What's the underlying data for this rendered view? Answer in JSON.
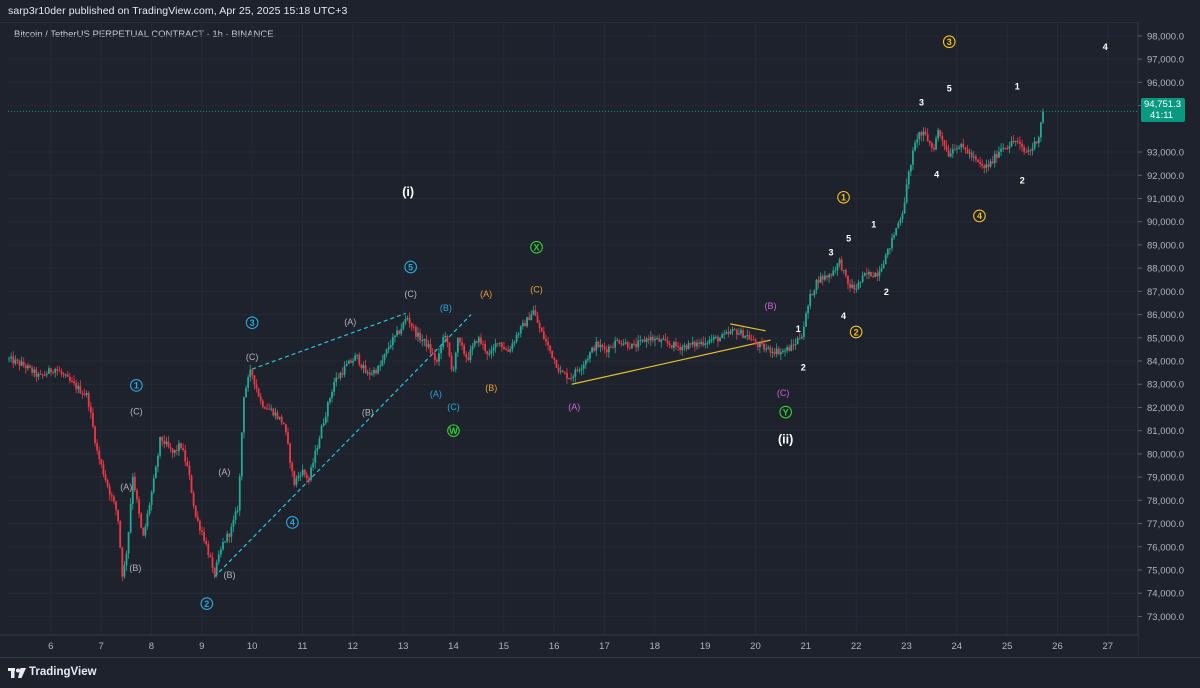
{
  "header": {
    "publisher_line": "sarp3r10der published on TradingView.com, Apr 25, 2025 15:18 UTC+3",
    "symbol_line": "Bitcoin / TetherUS PERPETUAL CONTRACT · 1h · BINANCE"
  },
  "footer": {
    "brand": "TradingView",
    "logo_icon": "tradingview-logo-icon"
  },
  "colors": {
    "background": "#1e222d",
    "up_candle": "#22ab94",
    "down_candle": "#f23645",
    "wave_cyan": "#2ba8d6",
    "wave_grey": "#b2b5be",
    "wave_green": "#33cc33",
    "wave_orange": "#f0a030",
    "wave_purple": "#cc66dd",
    "wave_yellow": "#f0c020",
    "trendline_cyan": "#26c6da",
    "trendline_yellow": "#e6c229",
    "current_price_line": "#089981"
  },
  "price_tag": {
    "price": "94,751.3",
    "countdown": "41:11"
  },
  "chart_data": {
    "type": "candlestick",
    "title": "Bitcoin / TetherUS PERPETUAL CONTRACT · 1h · BINANCE",
    "ylim": [
      72200,
      98600
    ],
    "y_ticks": [
      "98,000.0",
      "97,000.0",
      "96,000.0",
      "95,000.0",
      "93,000.0",
      "92,000.0",
      "91,000.0",
      "90,000.0",
      "89,000.0",
      "88,000.0",
      "87,000.0",
      "86,000.0",
      "85,000.0",
      "84,000.0",
      "83,000.0",
      "82,000.0",
      "81,000.0",
      "80,000.0",
      "79,000.0",
      "78,000.0",
      "77,000.0",
      "76,000.0",
      "75,000.0",
      "74,000.0",
      "73,000.0"
    ],
    "x_ticks": [
      "6",
      "7",
      "8",
      "9",
      "10",
      "11",
      "12",
      "13",
      "14",
      "15",
      "16",
      "17",
      "18",
      "19",
      "20",
      "21",
      "22",
      "23",
      "24",
      "25",
      "26",
      "27"
    ],
    "x_domain": [
      5.15,
      27.6
    ],
    "current_price": 94751.3,
    "series": [
      {
        "name": "price_path",
        "points": [
          [
            5.15,
            84100
          ],
          [
            5.5,
            83800
          ],
          [
            5.8,
            83300
          ],
          [
            6.1,
            83700
          ],
          [
            6.4,
            83100
          ],
          [
            6.75,
            82500
          ],
          [
            6.95,
            80000
          ],
          [
            7.2,
            78300
          ],
          [
            7.35,
            77400
          ],
          [
            7.45,
            74600
          ],
          [
            7.55,
            76200
          ],
          [
            7.65,
            79100
          ],
          [
            7.85,
            76300
          ],
          [
            8.1,
            79200
          ],
          [
            8.2,
            80700
          ],
          [
            8.45,
            80000
          ],
          [
            8.6,
            80400
          ],
          [
            8.75,
            79300
          ],
          [
            8.9,
            77300
          ],
          [
            9.05,
            76500
          ],
          [
            9.2,
            75400
          ],
          [
            9.25,
            74700
          ],
          [
            9.45,
            76200
          ],
          [
            9.6,
            76700
          ],
          [
            9.75,
            77800
          ],
          [
            9.85,
            82500
          ],
          [
            10.0,
            83600
          ],
          [
            10.2,
            82200
          ],
          [
            10.45,
            81800
          ],
          [
            10.65,
            81300
          ],
          [
            10.75,
            80100
          ],
          [
            10.85,
            78700
          ],
          [
            11.0,
            79300
          ],
          [
            11.15,
            78900
          ],
          [
            11.4,
            81100
          ],
          [
            11.65,
            83100
          ],
          [
            11.9,
            83800
          ],
          [
            12.1,
            84200
          ],
          [
            12.3,
            83400
          ],
          [
            12.55,
            83700
          ],
          [
            12.75,
            84700
          ],
          [
            12.95,
            85300
          ],
          [
            13.1,
            85900
          ],
          [
            13.3,
            85100
          ],
          [
            13.5,
            84700
          ],
          [
            13.7,
            83900
          ],
          [
            13.85,
            85300
          ],
          [
            14.0,
            83400
          ],
          [
            14.1,
            84900
          ],
          [
            14.3,
            84100
          ],
          [
            14.5,
            85000
          ],
          [
            14.75,
            84200
          ],
          [
            14.9,
            84900
          ],
          [
            15.1,
            84400
          ],
          [
            15.3,
            85200
          ],
          [
            15.5,
            85800
          ],
          [
            15.6,
            86200
          ],
          [
            15.75,
            85300
          ],
          [
            15.95,
            84400
          ],
          [
            16.15,
            83500
          ],
          [
            16.35,
            83300
          ],
          [
            16.6,
            83900
          ],
          [
            16.85,
            84700
          ],
          [
            17.05,
            84500
          ],
          [
            17.3,
            84900
          ],
          [
            17.6,
            84600
          ],
          [
            17.9,
            85000
          ],
          [
            18.2,
            84800
          ],
          [
            18.5,
            84600
          ],
          [
            18.8,
            84700
          ],
          [
            19.1,
            84900
          ],
          [
            19.35,
            85000
          ],
          [
            19.6,
            85300
          ],
          [
            19.85,
            85100
          ],
          [
            20.05,
            84700
          ],
          [
            20.25,
            84500
          ],
          [
            20.55,
            84400
          ],
          [
            20.75,
            84600
          ],
          [
            20.95,
            85200
          ],
          [
            21.1,
            86700
          ],
          [
            21.25,
            87500
          ],
          [
            21.5,
            87700
          ],
          [
            21.7,
            88300
          ],
          [
            21.85,
            87300
          ],
          [
            22.0,
            87100
          ],
          [
            22.2,
            87700
          ],
          [
            22.45,
            87800
          ],
          [
            22.65,
            88700
          ],
          [
            22.8,
            89600
          ],
          [
            22.95,
            90500
          ],
          [
            23.1,
            92500
          ],
          [
            23.25,
            93800
          ],
          [
            23.4,
            93700
          ],
          [
            23.55,
            93100
          ],
          [
            23.65,
            93900
          ],
          [
            23.75,
            93500
          ],
          [
            23.85,
            92900
          ],
          [
            24.0,
            93300
          ],
          [
            24.2,
            93100
          ],
          [
            24.4,
            92600
          ],
          [
            24.55,
            92300
          ],
          [
            24.7,
            92500
          ],
          [
            24.9,
            93200
          ],
          [
            25.05,
            93300
          ],
          [
            25.2,
            93500
          ],
          [
            25.35,
            93000
          ],
          [
            25.5,
            93100
          ],
          [
            25.65,
            93700
          ],
          [
            25.72,
            94751
          ]
        ]
      }
    ],
    "trendlines": [
      {
        "name": "channel-upper",
        "color": "cyan",
        "dashed": true,
        "from": [
          10.0,
          83650
        ],
        "to": [
          13.05,
          86050
        ]
      },
      {
        "name": "channel-lower",
        "color": "cyan",
        "dashed": true,
        "from": [
          9.25,
          74700
        ],
        "to": [
          14.35,
          86000
        ]
      },
      {
        "name": "triangle-lower",
        "color": "yellow",
        "dashed": false,
        "from": [
          16.35,
          83000
        ],
        "to": [
          20.3,
          84900
        ]
      },
      {
        "name": "triangle-upper",
        "color": "yellow",
        "dashed": false,
        "from": [
          19.5,
          85600
        ],
        "to": [
          20.2,
          85300
        ]
      }
    ],
    "annotations": [
      {
        "text": "1",
        "circled": true,
        "color": "cyan",
        "x": 7.7,
        "y": 82950
      },
      {
        "text": "(C)",
        "circled": false,
        "color": "grey",
        "x": 7.7,
        "y": 81850
      },
      {
        "text": "(A)",
        "circled": false,
        "color": "grey",
        "x": 7.5,
        "y": 78600
      },
      {
        "text": "(B)",
        "circled": false,
        "color": "grey",
        "x": 7.68,
        "y": 75100
      },
      {
        "text": "(A)",
        "circled": false,
        "color": "grey",
        "x": 9.45,
        "y": 79250
      },
      {
        "text": "(B)",
        "circled": false,
        "color": "grey",
        "x": 9.55,
        "y": 74800
      },
      {
        "text": "2",
        "circled": true,
        "color": "cyan",
        "x": 9.1,
        "y": 73550
      },
      {
        "text": "3",
        "circled": true,
        "color": "cyan",
        "x": 10.0,
        "y": 85650
      },
      {
        "text": "(C)",
        "circled": false,
        "color": "grey",
        "x": 10.0,
        "y": 84200
      },
      {
        "text": "4",
        "circled": true,
        "color": "cyan",
        "x": 10.8,
        "y": 77050
      },
      {
        "text": "(A)",
        "circled": false,
        "color": "grey",
        "x": 11.95,
        "y": 85700
      },
      {
        "text": "(B)",
        "circled": false,
        "color": "grey",
        "x": 12.3,
        "y": 81800
      },
      {
        "text": "5",
        "circled": true,
        "color": "cyan",
        "x": 13.15,
        "y": 88050
      },
      {
        "text": "(C)",
        "circled": false,
        "color": "grey",
        "x": 13.15,
        "y": 86900
      },
      {
        "text": "(i)",
        "circled": false,
        "color": "white",
        "x": 13.1,
        "y": 91250
      },
      {
        "text": "(B)",
        "circled": false,
        "color": "cyan",
        "x": 13.85,
        "y": 86300
      },
      {
        "text": "(A)",
        "circled": false,
        "color": "cyan",
        "x": 13.65,
        "y": 82600
      },
      {
        "text": "(C)",
        "circled": false,
        "color": "cyan",
        "x": 14.0,
        "y": 82050
      },
      {
        "text": "W",
        "circled": true,
        "color": "green",
        "x": 14.0,
        "y": 81000
      },
      {
        "text": "(A)",
        "circled": false,
        "color": "orange",
        "x": 14.65,
        "y": 86900
      },
      {
        "text": "(B)",
        "circled": false,
        "color": "orange",
        "x": 14.75,
        "y": 82850
      },
      {
        "text": "X",
        "circled": true,
        "color": "green",
        "x": 15.65,
        "y": 88900
      },
      {
        "text": "(C)",
        "circled": false,
        "color": "orange",
        "x": 15.65,
        "y": 87100
      },
      {
        "text": "(A)",
        "circled": false,
        "color": "purple",
        "x": 16.4,
        "y": 82050
      },
      {
        "text": "(B)",
        "circled": false,
        "color": "purple",
        "x": 20.3,
        "y": 86400
      },
      {
        "text": "(C)",
        "circled": false,
        "color": "purple",
        "x": 20.55,
        "y": 82650
      },
      {
        "text": "Y",
        "circled": true,
        "color": "green",
        "x": 20.6,
        "y": 81800
      },
      {
        "text": "(ii)",
        "circled": false,
        "color": "white",
        "x": 20.6,
        "y": 80600
      },
      {
        "text": "1",
        "circled": false,
        "color": "white",
        "x": 20.85,
        "y": 85400
      },
      {
        "text": "2",
        "circled": false,
        "color": "white",
        "x": 20.95,
        "y": 83750
      },
      {
        "text": "3",
        "circled": false,
        "color": "white",
        "x": 21.5,
        "y": 88700
      },
      {
        "text": "4",
        "circled": false,
        "color": "white",
        "x": 21.75,
        "y": 85950
      },
      {
        "text": "5",
        "circled": false,
        "color": "white",
        "x": 21.85,
        "y": 89300
      },
      {
        "text": "1",
        "circled": false,
        "color": "white",
        "x": 22.35,
        "y": 89900
      },
      {
        "text": "2",
        "circled": false,
        "color": "white",
        "x": 22.6,
        "y": 87000
      },
      {
        "text": "1",
        "circled": true,
        "color": "yellow",
        "x": 21.75,
        "y": 91050
      },
      {
        "text": "2",
        "circled": true,
        "color": "yellow",
        "x": 22.0,
        "y": 85250
      },
      {
        "text": "3",
        "circled": false,
        "color": "white",
        "x": 23.3,
        "y": 95150
      },
      {
        "text": "5",
        "circled": false,
        "color": "white",
        "x": 23.85,
        "y": 95750
      },
      {
        "text": "3",
        "circled": true,
        "color": "yellow",
        "x": 23.85,
        "y": 97750
      },
      {
        "text": "4",
        "circled": false,
        "color": "white",
        "x": 23.6,
        "y": 92050
      },
      {
        "text": "4",
        "circled": true,
        "color": "yellow",
        "x": 24.45,
        "y": 90250
      },
      {
        "text": "1",
        "circled": false,
        "color": "white",
        "x": 25.2,
        "y": 95850
      },
      {
        "text": "2",
        "circled": false,
        "color": "white",
        "x": 25.3,
        "y": 91800
      },
      {
        "text": "4",
        "circled": false,
        "color": "white",
        "x": 26.95,
        "y": 97550
      }
    ]
  }
}
